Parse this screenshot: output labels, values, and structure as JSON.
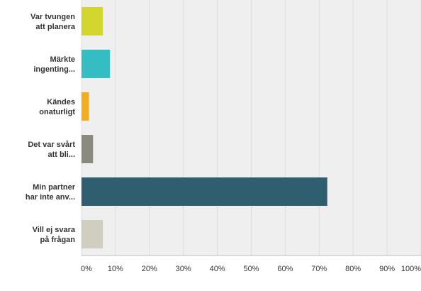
{
  "chart_data": {
    "type": "bar",
    "orientation": "horizontal",
    "categories": [
      [
        "Var tvungen",
        "att planera"
      ],
      [
        "Märkte",
        "ingenting..."
      ],
      [
        "Kändes",
        "onaturligt"
      ],
      [
        "Det var svårt",
        "att bli..."
      ],
      [
        "Min partner",
        "har inte anv..."
      ],
      [
        "Vill ej svara",
        "på frågan"
      ]
    ],
    "values": [
      6.3,
      8.4,
      2.2,
      3.4,
      72.4,
      6.3
    ],
    "colors": [
      "#d2d62e",
      "#34bec4",
      "#f1ae22",
      "#8a8a7e",
      "#2f5f6e",
      "#d0cfbf"
    ],
    "xlim": [
      0,
      100
    ],
    "x_ticks": [
      "0%",
      "10%",
      "20%",
      "30%",
      "40%",
      "50%",
      "60%",
      "70%",
      "80%",
      "90%",
      "100%"
    ],
    "grid": true,
    "plot_background": "#efefef",
    "grid_color": "#dcdcdc"
  }
}
